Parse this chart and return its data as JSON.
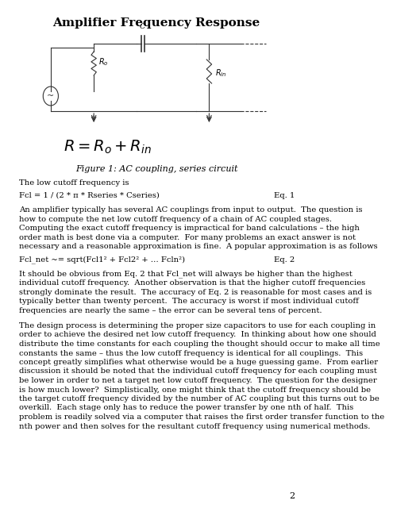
{
  "title": "Amplifier Frequency Response",
  "figure_caption": "Figure 1: AC coupling, series circuit",
  "eq1_left": "Fcl = 1 / (2 * π * Rseries * Cseries)",
  "eq1_right": "Eq. 1",
  "eq2_left": "Fcl_net ~= sqrt(Fcl1² + Fcl2² + … Fcln²)",
  "eq2_right": "Eq. 2",
  "para_before_eq1": "The low cutoff frequency is",
  "para_after_eq1": "An amplifier typically has several AC couplings from input to output.  The question is\nhow to compute the net low cutoff frequency of a chain of AC coupled stages.\nComputing the exact cutoff frequency is impractical for band calculations – the high\norder math is best done via a computer.  For many problems an exact answer is not\nnecessary and a reasonable approximation is fine.  A popular approximation is as follows",
  "para_after_eq2": "It should be obvious from Eq. 2 that Fcl_net will always be higher than the highest\nindividual cutoff frequency.  Another observation is that the higher cutoff frequencies\nstrongly dominate the result.  The accuracy of Eq. 2 is reasonable for most cases and is\ntypically better than twenty percent.  The accuracy is worst if most individual cutoff\nfrequencies are nearly the same – the error can be several tens of percent.",
  "para_design": "The design process is determining the proper size capacitors to use for each coupling in\norder to achieve the desired net low cutoff frequency.  In thinking about how one should\ndistribute the time constants for each coupling the thought should occur to make all time\nconstants the same – thus the low cutoff frequency is identical for all couplings.  This\nconcept greatly simplifies what otherwise would be a huge guessing game.  From earlier\ndiscussion it should be noted that the individual cutoff frequency for each coupling must\nbe lower in order to net a target net low cutoff frequency.  The question for the designer\nis how much lower?  Simplistically, one might think that the cutoff frequency should be\nthe target cutoff frequency divided by the number of AC coupling but this turns out to be\noverkill.  Each stage only has to reduce the power transfer by one nth of half.  This\nproblem is readily solved via a computer that raises the first order transfer function to the\nnth power and then solves for the resultant cutoff frequency using numerical methods.",
  "page_number": "2",
  "bg_color": "#ffffff"
}
